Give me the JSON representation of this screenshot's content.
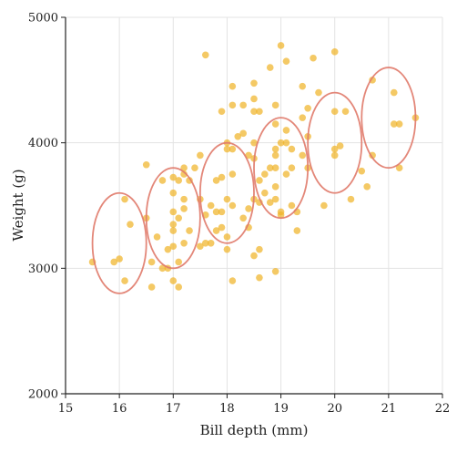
{
  "chart_data": {
    "type": "scatter",
    "xlabel": "Bill depth (mm)",
    "ylabel": "Weight (g)",
    "xlim": [
      15,
      22
    ],
    "ylim": [
      2000,
      5000
    ],
    "x_ticks": [
      "15",
      "16",
      "17",
      "18",
      "19",
      "20",
      "21",
      "22"
    ],
    "y_ticks": [
      "2000",
      "3000",
      "4000",
      "5000"
    ],
    "grid": true,
    "colors": {
      "points": "#f0b429",
      "ellipses": "#e07a6a"
    },
    "points": [
      [
        15.5,
        3050
      ],
      [
        15.9,
        3050
      ],
      [
        16.0,
        3075
      ],
      [
        16.1,
        2900
      ],
      [
        16.1,
        3550
      ],
      [
        16.2,
        3350
      ],
      [
        16.5,
        3825
      ],
      [
        16.5,
        3400
      ],
      [
        16.6,
        3050
      ],
      [
        16.6,
        2850
      ],
      [
        16.7,
        3250
      ],
      [
        16.8,
        3700
      ],
      [
        16.8,
        3000
      ],
      [
        16.9,
        3150
      ],
      [
        16.9,
        3000
      ],
      [
        17.0,
        3725
      ],
      [
        17.0,
        3600
      ],
      [
        17.0,
        3450
      ],
      [
        17.0,
        3350
      ],
      [
        17.0,
        3300
      ],
      [
        17.0,
        3175
      ],
      [
        17.0,
        2900
      ],
      [
        17.1,
        3700
      ],
      [
        17.1,
        3400
      ],
      [
        17.1,
        3050
      ],
      [
        17.1,
        2850
      ],
      [
        17.2,
        3800
      ],
      [
        17.2,
        3750
      ],
      [
        17.2,
        3550
      ],
      [
        17.2,
        3475
      ],
      [
        17.2,
        3200
      ],
      [
        17.3,
        3700
      ],
      [
        17.3,
        3300
      ],
      [
        17.4,
        3800
      ],
      [
        17.5,
        3900
      ],
      [
        17.5,
        3550
      ],
      [
        17.5,
        3175
      ],
      [
        17.6,
        4700
      ],
      [
        17.6,
        3425
      ],
      [
        17.6,
        3200
      ],
      [
        17.7,
        3500
      ],
      [
        17.7,
        3200
      ],
      [
        17.8,
        3700
      ],
      [
        17.8,
        3450
      ],
      [
        17.8,
        3300
      ],
      [
        17.9,
        4250
      ],
      [
        17.9,
        3725
      ],
      [
        17.9,
        3450
      ],
      [
        17.9,
        3325
      ],
      [
        18.0,
        4000
      ],
      [
        18.0,
        3950
      ],
      [
        18.0,
        3550
      ],
      [
        18.0,
        3250
      ],
      [
        18.0,
        3150
      ],
      [
        18.1,
        4450
      ],
      [
        18.1,
        4300
      ],
      [
        18.1,
        3950
      ],
      [
        18.1,
        3750
      ],
      [
        18.1,
        3500
      ],
      [
        18.1,
        2900
      ],
      [
        18.2,
        4050
      ],
      [
        18.3,
        4300
      ],
      [
        18.3,
        4075
      ],
      [
        18.3,
        3400
      ],
      [
        18.4,
        3900
      ],
      [
        18.4,
        3475
      ],
      [
        18.4,
        3325
      ],
      [
        18.5,
        4475
      ],
      [
        18.5,
        4350
      ],
      [
        18.5,
        4250
      ],
      [
        18.5,
        4000
      ],
      [
        18.5,
        3875
      ],
      [
        18.5,
        3550
      ],
      [
        18.5,
        3100
      ],
      [
        18.6,
        4250
      ],
      [
        18.6,
        3700
      ],
      [
        18.6,
        3525
      ],
      [
        18.6,
        3150
      ],
      [
        18.6,
        2925
      ],
      [
        18.7,
        3750
      ],
      [
        18.7,
        3600
      ],
      [
        18.8,
        4600
      ],
      [
        18.8,
        3800
      ],
      [
        18.8,
        3525
      ],
      [
        18.9,
        4300
      ],
      [
        18.9,
        4150
      ],
      [
        18.9,
        3950
      ],
      [
        18.9,
        3900
      ],
      [
        18.9,
        3800
      ],
      [
        18.9,
        3650
      ],
      [
        18.9,
        3550
      ],
      [
        18.9,
        2975
      ],
      [
        19.0,
        4775
      ],
      [
        19.0,
        4000
      ],
      [
        19.0,
        3450
      ],
      [
        19.0,
        3425
      ],
      [
        19.1,
        4650
      ],
      [
        19.1,
        4100
      ],
      [
        19.1,
        4000
      ],
      [
        19.1,
        3750
      ],
      [
        19.2,
        3950
      ],
      [
        19.2,
        3800
      ],
      [
        19.2,
        3500
      ],
      [
        19.3,
        3450
      ],
      [
        19.3,
        3300
      ],
      [
        19.4,
        4450
      ],
      [
        19.4,
        4200
      ],
      [
        19.4,
        3900
      ],
      [
        19.5,
        4275
      ],
      [
        19.5,
        4050
      ],
      [
        19.5,
        3800
      ],
      [
        19.6,
        4675
      ],
      [
        19.7,
        4400
      ],
      [
        19.8,
        3500
      ],
      [
        20.0,
        4725
      ],
      [
        20.0,
        4250
      ],
      [
        20.0,
        3950
      ],
      [
        20.0,
        3900
      ],
      [
        20.1,
        3975
      ],
      [
        20.2,
        4250
      ],
      [
        20.3,
        3550
      ],
      [
        20.5,
        3775
      ],
      [
        20.6,
        3650
      ],
      [
        20.7,
        4500
      ],
      [
        20.7,
        3900
      ],
      [
        21.1,
        4400
      ],
      [
        21.1,
        4150
      ],
      [
        21.2,
        4150
      ],
      [
        21.2,
        3800
      ],
      [
        21.5,
        4200
      ]
    ],
    "ellipses": [
      {
        "cx": 16.0,
        "cy": 3200,
        "rx": 0.5,
        "ry": 400
      },
      {
        "cx": 17.0,
        "cy": 3400,
        "rx": 0.5,
        "ry": 400
      },
      {
        "cx": 18.0,
        "cy": 3600,
        "rx": 0.5,
        "ry": 400
      },
      {
        "cx": 19.0,
        "cy": 3800,
        "rx": 0.5,
        "ry": 400
      },
      {
        "cx": 20.0,
        "cy": 4000,
        "rx": 0.5,
        "ry": 400
      },
      {
        "cx": 21.0,
        "cy": 4200,
        "rx": 0.5,
        "ry": 400
      }
    ]
  }
}
